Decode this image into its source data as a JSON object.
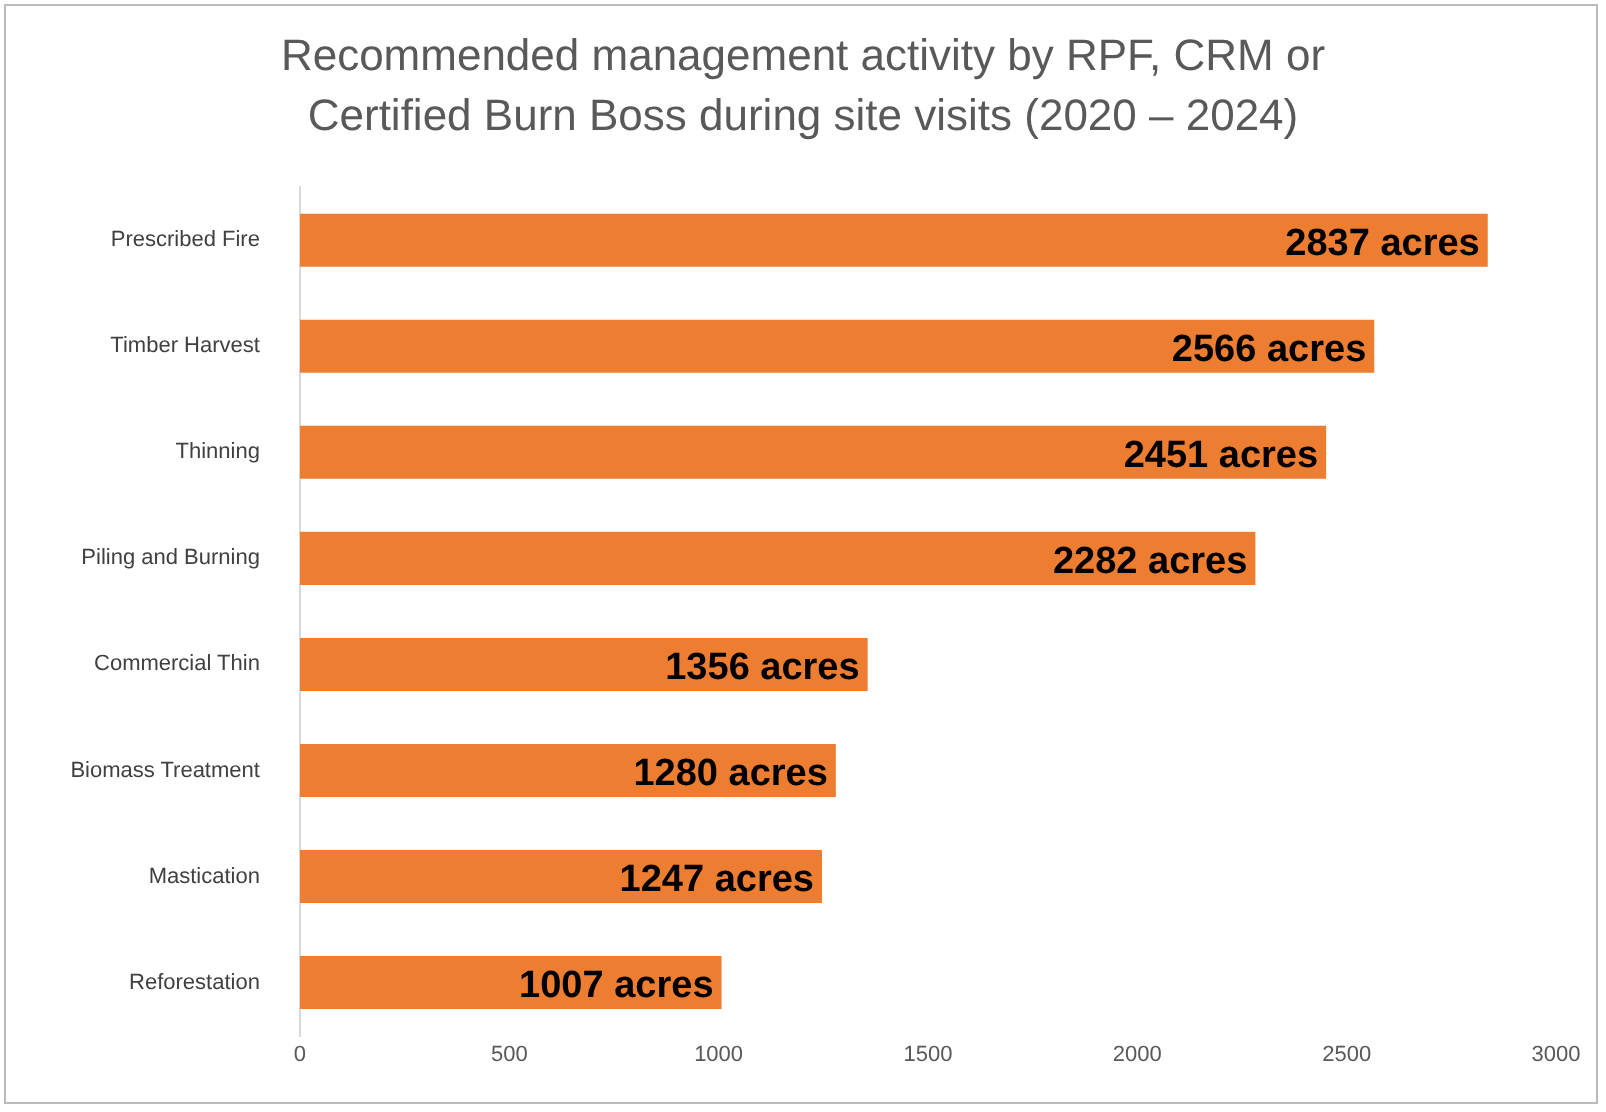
{
  "chart_data": {
    "type": "bar",
    "orientation": "horizontal",
    "title": "Recommended management activity by RPF, CRM or Certified Burn Boss during site visits (2020 – 2024)",
    "categories": [
      "Prescribed Fire",
      "Timber Harvest",
      "Thinning",
      "Piling and Burning",
      "Commercial Thin",
      "Biomass Treatment",
      "Mastication",
      "Reforestation"
    ],
    "values": [
      2837,
      2566,
      2451,
      2282,
      1356,
      1280,
      1247,
      1007
    ],
    "value_labels": [
      "2837 acres",
      "2566 acres",
      "2451 acres",
      "2282 acres",
      "1356 acres",
      "1280 acres",
      "1247 acres",
      "1007 acres"
    ],
    "color": "#ed7d31",
    "xlim": [
      0,
      3000
    ],
    "xticks": [
      0,
      500,
      1000,
      1500,
      2000,
      2500,
      3000
    ],
    "grid": false,
    "legend": false
  }
}
